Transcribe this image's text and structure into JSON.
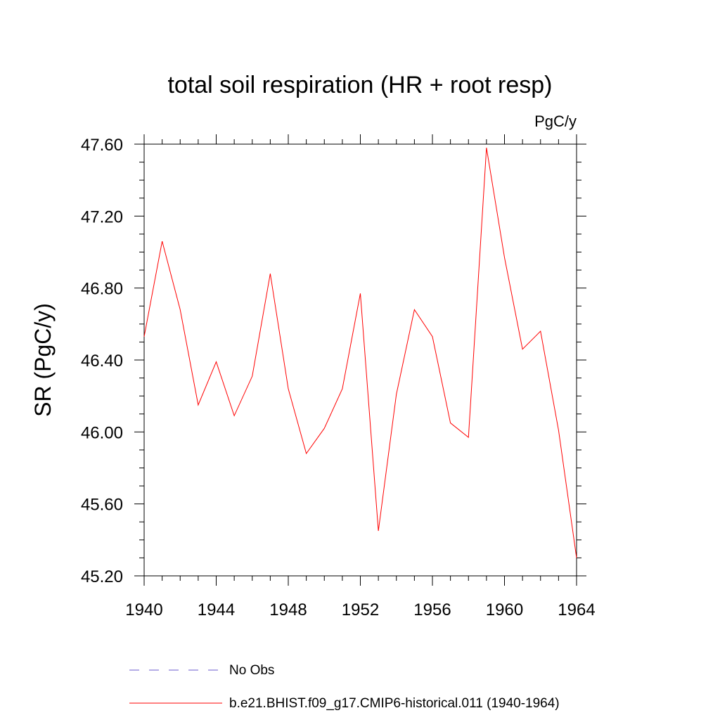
{
  "chart_data": {
    "type": "line",
    "title": "total soil respiration (HR + root resp)",
    "units_label": "PgC/y",
    "xlabel": "",
    "ylabel": "SR  (PgC/y)",
    "xlim": [
      1940,
      1964
    ],
    "ylim": [
      45.2,
      47.6
    ],
    "x_ticks": [
      1940,
      1944,
      1948,
      1952,
      1956,
      1960,
      1964
    ],
    "x_tick_labels": [
      "1940",
      "1944",
      "1948",
      "1952",
      "1956",
      "1960",
      "1964"
    ],
    "y_ticks": [
      45.2,
      45.6,
      46.0,
      46.4,
      46.8,
      47.2,
      47.6
    ],
    "y_tick_labels": [
      "45.20",
      "45.60",
      "46.00",
      "46.40",
      "46.80",
      "47.20",
      "47.60"
    ],
    "grid": false,
    "legend_position": "bottom",
    "series": [
      {
        "name": "b.e21.BHIST.f09_g17.CMIP6-historical.011 (1940-1964)",
        "color": "#ff0000",
        "dash": "solid",
        "x": [
          1940,
          1941,
          1942,
          1943,
          1944,
          1945,
          1946,
          1947,
          1948,
          1949,
          1950,
          1951,
          1952,
          1953,
          1954,
          1955,
          1956,
          1957,
          1958,
          1959,
          1960,
          1961,
          1962,
          1963,
          1964
        ],
        "y": [
          46.53,
          47.06,
          46.68,
          46.15,
          46.39,
          46.09,
          46.31,
          46.88,
          46.24,
          45.88,
          46.02,
          46.24,
          46.77,
          45.45,
          46.21,
          46.68,
          46.53,
          46.05,
          45.97,
          47.58,
          46.97,
          46.46,
          46.56,
          46.01,
          45.3
        ]
      }
    ],
    "legend": [
      {
        "name": "No Obs",
        "color": "#6a5acd",
        "dash": "dashed"
      },
      {
        "name": "b.e21.BHIST.f09_g17.CMIP6-historical.011 (1940-1964)",
        "color": "#ff0000",
        "dash": "solid"
      }
    ]
  }
}
